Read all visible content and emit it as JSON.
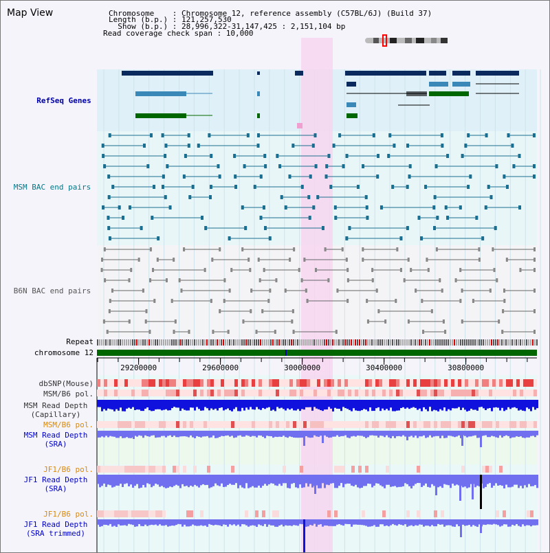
{
  "title": "Map View",
  "info": {
    "line1": "Chromosome    : Chromosome 12, reference assembly (C57BL/6J) (Build 37)",
    "line2": "Length (b.p.) : 121,257,530",
    "line3": "  Show (b.p.) : 28,996,322-31,147,425 : 2,151,104 bp",
    "line4": "Read coverage check span : 10,000"
  },
  "tracks": {
    "refseq": "RefSeq Genes",
    "msm_bac": "MSM BAC end pairs",
    "b6n_bac": "B6N BAC end pairs",
    "repeat": "Repeat",
    "chromosome": "chromosome 12",
    "dbsnp": "dbSNP(Mouse)",
    "msm_b6_pol": "MSM/B6 pol.",
    "msm_depth_cap_1": "MSM Read Depth",
    "msm_depth_cap_2": "(Capillary)",
    "msm_b6_pol_2": "MSM/B6 pol.",
    "msm_depth_sra_1": "MSM Read Depth",
    "msm_depth_sra_2": "(SRA)",
    "jf1_b6_pol": "JF1/B6 pol.",
    "jf1_depth_sra_1": "JF1 Read Depth",
    "jf1_depth_sra_2": "(SRA)",
    "jf1_b6_pol_2": "JF1/B6 pol.",
    "jf1_depth_trim_1": "JF1 Read Depth",
    "jf1_depth_trim_2": "(SRA trimmed)"
  },
  "axis": {
    "ticks": [
      {
        "value": 29200000,
        "label": "29200000"
      },
      {
        "value": 29600000,
        "label": "29600000"
      },
      {
        "value": 30000000,
        "label": "30000000"
      },
      {
        "value": 30400000,
        "label": "30400000"
      },
      {
        "value": 30800000,
        "label": "30800000"
      }
    ]
  },
  "colors": {
    "refseq_label": "#0000aa",
    "msm_label": "#007788",
    "b6n_label": "#555555",
    "orange_label": "#dd8800",
    "blue_label": "#0000cc",
    "highlight": "#f7d6f0",
    "gene_dark": "#0a2a5e",
    "gene_mid": "#3a88b8",
    "gene_green": "#006600",
    "depth_blue": "#1111dd",
    "depth_light": "#6f6ff0"
  }
}
